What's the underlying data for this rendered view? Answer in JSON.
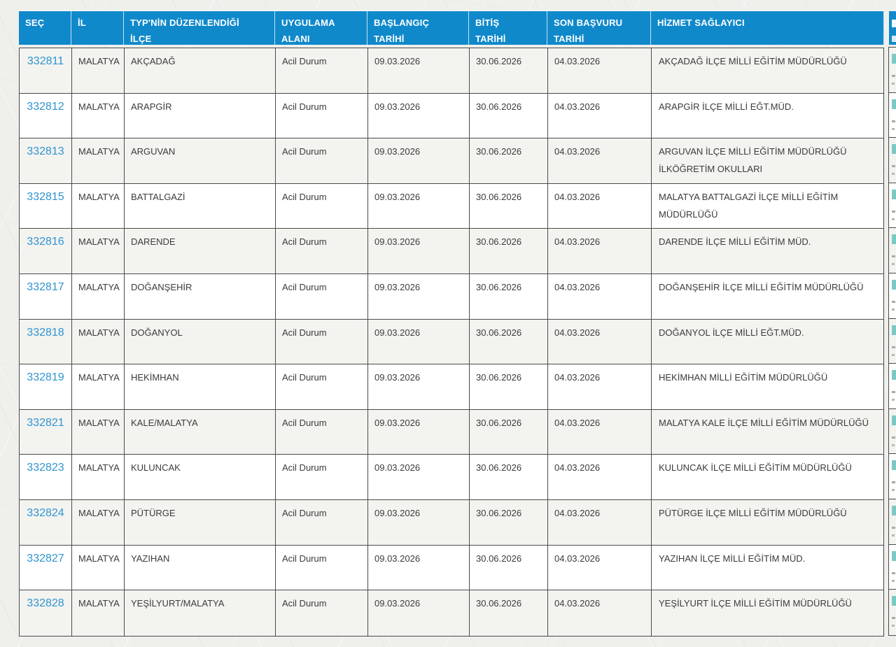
{
  "colors": {
    "header_bg": "#1089cb",
    "header_text": "#ffffff",
    "link": "#2f95d0",
    "row_alt_bg": "#f3f3f0",
    "row_bg": "#ffffff",
    "border": "#4b4b4b",
    "cell_text": "#3b3b3b",
    "page_bg": "#efefec",
    "clipped_link_fragment": "#7cc9c4"
  },
  "table": {
    "columns": [
      {
        "key": "sec",
        "label": "SEÇ"
      },
      {
        "key": "il",
        "label": "İL"
      },
      {
        "key": "ilce",
        "label": "TYP'NİN DÜZENLENDİĞİ İLÇE"
      },
      {
        "key": "uygulama_alani",
        "label": "UYGULAMA ALANI"
      },
      {
        "key": "baslangic_tarihi",
        "label": "BAŞLANGIÇ TARİHİ"
      },
      {
        "key": "bitis_tarihi",
        "label": "BİTİŞ TARİHİ"
      },
      {
        "key": "son_basvuru_tarihi",
        "label": "SON BAŞVURU TARİHİ"
      },
      {
        "key": "hizmet_saglayici",
        "label": "HİZMET SAĞLAYICI"
      }
    ],
    "rows": [
      {
        "sec": "332811",
        "il": "MALATYA",
        "ilce": "AKÇADAĞ",
        "uygulama_alani": "Acil Durum",
        "baslangic_tarihi": "09.03.2026",
        "bitis_tarihi": "30.06.2026",
        "son_basvuru_tarihi": "04.03.2026",
        "hizmet_saglayici": "AKÇADAĞ İLÇE MİLLİ EĞİTİM MÜDÜRLÜĞÜ"
      },
      {
        "sec": "332812",
        "il": "MALATYA",
        "ilce": "ARAPGİR",
        "uygulama_alani": "Acil Durum",
        "baslangic_tarihi": "09.03.2026",
        "bitis_tarihi": "30.06.2026",
        "son_basvuru_tarihi": "04.03.2026",
        "hizmet_saglayici": "ARAPGİR İLÇE MİLLİ EĞT.MÜD."
      },
      {
        "sec": "332813",
        "il": "MALATYA",
        "ilce": "ARGUVAN",
        "uygulama_alani": "Acil Durum",
        "baslangic_tarihi": "09.03.2026",
        "bitis_tarihi": "30.06.2026",
        "son_basvuru_tarihi": "04.03.2026",
        "hizmet_saglayici": "ARGUVAN İLÇE MİLLİ EĞİTİM MÜDÜRLÜĞÜ İLKÖĞRETİM OKULLARI"
      },
      {
        "sec": "332815",
        "il": "MALATYA",
        "ilce": "BATTALGAZİ",
        "uygulama_alani": "Acil Durum",
        "baslangic_tarihi": "09.03.2026",
        "bitis_tarihi": "30.06.2026",
        "son_basvuru_tarihi": "04.03.2026",
        "hizmet_saglayici": "MALATYA BATTALGAZİ İLÇE MİLLİ EĞİTİM MÜDÜRLÜĞÜ"
      },
      {
        "sec": "332816",
        "il": "MALATYA",
        "ilce": "DARENDE",
        "uygulama_alani": "Acil Durum",
        "baslangic_tarihi": "09.03.2026",
        "bitis_tarihi": "30.06.2026",
        "son_basvuru_tarihi": "04.03.2026",
        "hizmet_saglayici": "DARENDE İLÇE MİLLİ EĞİTİM MÜD."
      },
      {
        "sec": "332817",
        "il": "MALATYA",
        "ilce": "DOĞANŞEHİR",
        "uygulama_alani": "Acil Durum",
        "baslangic_tarihi": "09.03.2026",
        "bitis_tarihi": "30.06.2026",
        "son_basvuru_tarihi": "04.03.2026",
        "hizmet_saglayici": "DOĞANŞEHİR İLÇE MİLLİ EĞİTİM MÜDÜRLÜĞÜ"
      },
      {
        "sec": "332818",
        "il": "MALATYA",
        "ilce": "DOĞANYOL",
        "uygulama_alani": "Acil Durum",
        "baslangic_tarihi": "09.03.2026",
        "bitis_tarihi": "30.06.2026",
        "son_basvuru_tarihi": "04.03.2026",
        "hizmet_saglayici": "DOĞANYOL İLÇE MİLLİ EĞT.MÜD."
      },
      {
        "sec": "332819",
        "il": "MALATYA",
        "ilce": "HEKİMHAN",
        "uygulama_alani": "Acil Durum",
        "baslangic_tarihi": "09.03.2026",
        "bitis_tarihi": "30.06.2026",
        "son_basvuru_tarihi": "04.03.2026",
        "hizmet_saglayici": "HEKİMHAN MİLLİ EĞİTİM MÜDÜRLÜĞÜ"
      },
      {
        "sec": "332821",
        "il": "MALATYA",
        "ilce": "KALE/MALATYA",
        "uygulama_alani": "Acil Durum",
        "baslangic_tarihi": "09.03.2026",
        "bitis_tarihi": "30.06.2026",
        "son_basvuru_tarihi": "04.03.2026",
        "hizmet_saglayici": "MALATYA KALE İLÇE MİLLİ EĞİTİM MÜDÜRLÜĞÜ"
      },
      {
        "sec": "332823",
        "il": "MALATYA",
        "ilce": "KULUNCAK",
        "uygulama_alani": "Acil Durum",
        "baslangic_tarihi": "09.03.2026",
        "bitis_tarihi": "30.06.2026",
        "son_basvuru_tarihi": "04.03.2026",
        "hizmet_saglayici": "KULUNCAK İLÇE MİLLİ EĞİTİM MÜDÜRLÜĞÜ"
      },
      {
        "sec": "332824",
        "il": "MALATYA",
        "ilce": "PÜTÜRGE",
        "uygulama_alani": "Acil Durum",
        "baslangic_tarihi": "09.03.2026",
        "bitis_tarihi": "30.06.2026",
        "son_basvuru_tarihi": "04.03.2026",
        "hizmet_saglayici": "PÜTÜRGE İLÇE MİLLİ EĞİTİM MÜDÜRLÜĞÜ"
      },
      {
        "sec": "332827",
        "il": "MALATYA",
        "ilce": "YAZIHAN",
        "uygulama_alani": "Acil Durum",
        "baslangic_tarihi": "09.03.2026",
        "bitis_tarihi": "30.06.2026",
        "son_basvuru_tarihi": "04.03.2026",
        "hizmet_saglayici": "YAZIHAN İLÇE MİLLİ EĞİTİM MÜD."
      },
      {
        "sec": "332828",
        "il": "MALATYA",
        "ilce": "YEŞİLYURT/MALATYA",
        "uygulama_alani": "Acil Durum",
        "baslangic_tarihi": "09.03.2026",
        "bitis_tarihi": "30.06.2026",
        "son_basvuru_tarihi": "04.03.2026",
        "hizmet_saglayici": "YEŞİLYURT İLÇE MİLLİ EĞİTİM MÜDÜRLÜĞÜ"
      }
    ]
  }
}
